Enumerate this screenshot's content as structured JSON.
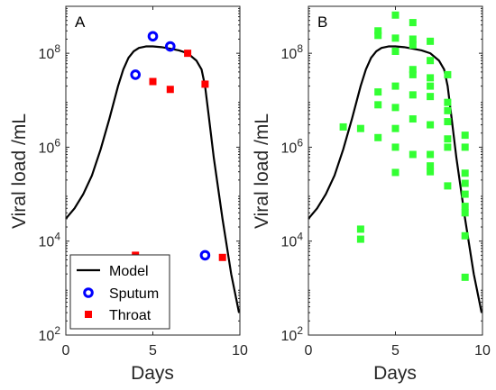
{
  "colors": {
    "model": "#000000",
    "sputum": "#0000ff",
    "throat": "#ff0000",
    "panel_b_points": "#33ff33",
    "axes": "#262626"
  },
  "chart_data": [
    {
      "type": "line",
      "panel_label": "A",
      "xlabel": "Days",
      "ylabel": "Viral load /mL",
      "xlim": [
        0,
        10
      ],
      "ylim": [
        100,
        1000000000
      ],
      "yscale": "log",
      "x_ticks": [
        0,
        5,
        10
      ],
      "x_tick_labels": [
        "0",
        "5",
        "10"
      ],
      "y_ticks": [
        100,
        10000,
        1000000,
        100000000
      ],
      "y_tick_labels": [
        {
          "base": "10",
          "exp": "2"
        },
        {
          "base": "10",
          "exp": "4"
        },
        {
          "base": "10",
          "exp": "6"
        },
        {
          "base": "10",
          "exp": "8"
        }
      ],
      "grid": false,
      "legend_position": "bottom-left",
      "legend": [
        "Model",
        "Sputum",
        "Throat"
      ],
      "series": [
        {
          "name": "Model",
          "kind": "line",
          "x": [
            0,
            0.5,
            1,
            1.5,
            2,
            2.5,
            3,
            3.3,
            3.6,
            3.9,
            4.2,
            4.6,
            5,
            5.5,
            6,
            6.5,
            7,
            7.5,
            7.8,
            8.0,
            8.2,
            8.5,
            9.0,
            9.5,
            9.95
          ],
          "y": [
            30000,
            50000,
            100000,
            250000,
            900000,
            4000000,
            20000000,
            45000000,
            80000000,
            110000000,
            130000000,
            140000000,
            140000000,
            135000000,
            125000000,
            115000000,
            100000000,
            70000000,
            45000000,
            20000000,
            5000000,
            600000,
            30000,
            2000,
            300
          ]
        },
        {
          "name": "Sputum",
          "kind": "marker",
          "x": [
            4,
            5,
            6,
            8
          ],
          "y": [
            35000000,
            230000000,
            140000000,
            5000
          ]
        },
        {
          "name": "Throat",
          "kind": "marker",
          "x": [
            4,
            5,
            6,
            7,
            8,
            9
          ],
          "y": [
            5000,
            25000000,
            17000000,
            100000000,
            22000000,
            4500
          ]
        }
      ]
    },
    {
      "type": "line",
      "panel_label": "B",
      "xlabel": "Days",
      "ylabel": "Viral load /mL",
      "xlim": [
        0,
        10
      ],
      "ylim": [
        100,
        1000000000
      ],
      "yscale": "log",
      "x_ticks": [
        0,
        5,
        10
      ],
      "x_tick_labels": [
        "0",
        "5",
        "10"
      ],
      "y_ticks": [
        100,
        10000,
        1000000,
        100000000
      ],
      "y_tick_labels": [
        {
          "base": "10",
          "exp": "2"
        },
        {
          "base": "10",
          "exp": "4"
        },
        {
          "base": "10",
          "exp": "6"
        },
        {
          "base": "10",
          "exp": "8"
        }
      ],
      "grid": false,
      "series": [
        {
          "kind": "line",
          "x": [
            0,
            0.5,
            1,
            1.5,
            2,
            2.5,
            3,
            3.3,
            3.6,
            3.9,
            4.2,
            4.6,
            5,
            5.5,
            6,
            6.5,
            7,
            7.5,
            7.8,
            8.0,
            8.2,
            8.5,
            9.0,
            9.5,
            9.95
          ],
          "y": [
            30000,
            50000,
            100000,
            250000,
            900000,
            4000000,
            20000000,
            45000000,
            80000000,
            110000000,
            130000000,
            140000000,
            140000000,
            135000000,
            125000000,
            115000000,
            100000000,
            70000000,
            45000000,
            20000000,
            5000000,
            600000,
            30000,
            2000,
            300
          ]
        },
        {
          "kind": "marker",
          "x": [
            2,
            3,
            3,
            3,
            4,
            4,
            4,
            4,
            4,
            5,
            5,
            5,
            5,
            5,
            5,
            5,
            5,
            6,
            6,
            6,
            6,
            6,
            6,
            6,
            6,
            7,
            7,
            7,
            7,
            7,
            7,
            7,
            7,
            7,
            8,
            8,
            8,
            8,
            8,
            8,
            8,
            9,
            9,
            9,
            9,
            9,
            9,
            9,
            9,
            9
          ],
          "y": [
            2700000,
            2500000,
            18000,
            11000,
            300000000,
            240000000,
            15000000,
            8000000,
            1600000,
            650000000,
            210000000,
            110000000,
            20000000,
            7000000,
            2500000,
            1000000,
            290000,
            450000000,
            200000000,
            45000000,
            35000000,
            13000000,
            4000000,
            700000,
            150000000,
            180000000,
            70000000,
            30000000,
            20000000,
            12000000,
            3000000,
            700000,
            400000,
            300000,
            35000000,
            9000000,
            6000000,
            3500000,
            1500000,
            1000000,
            150000,
            1800000,
            1000000,
            280000,
            170000,
            55000,
            40000,
            13000,
            1700,
            100000
          ]
        }
      ]
    }
  ]
}
